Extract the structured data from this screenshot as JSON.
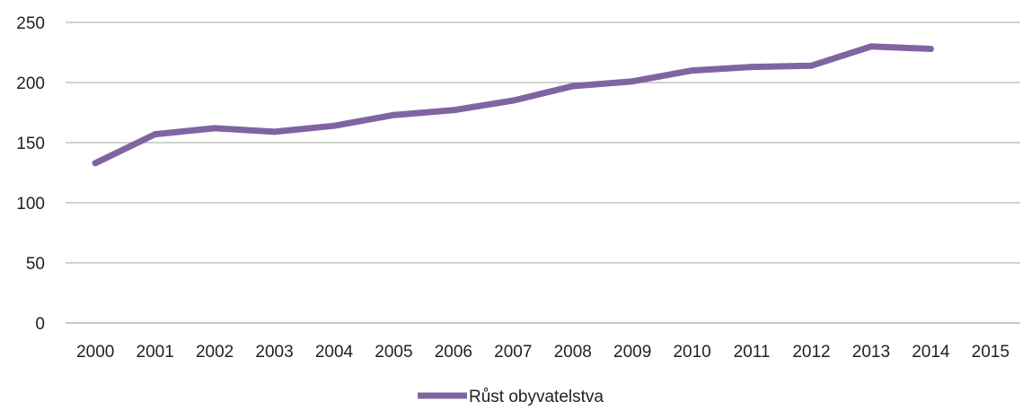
{
  "chart_data": {
    "type": "line",
    "title": "",
    "xlabel": "",
    "ylabel": "",
    "x": [
      "2000",
      "2001",
      "2002",
      "2003",
      "2004",
      "2005",
      "2006",
      "2007",
      "2008",
      "2009",
      "2010",
      "2011",
      "2012",
      "2013",
      "2014",
      "2015"
    ],
    "series": [
      {
        "name": "Růst obyvatelstva",
        "values": [
          133,
          157,
          162,
          159,
          164,
          173,
          177,
          185,
          197,
          201,
          210,
          213,
          214,
          230,
          228,
          null
        ]
      }
    ],
    "ylim": [
      0,
      250
    ],
    "yticks": [
      0,
      50,
      100,
      150,
      200,
      250
    ],
    "grid": true,
    "legend": "bottom-center",
    "line_color": "#8064A2",
    "grid_color": "#A6A6A6"
  }
}
